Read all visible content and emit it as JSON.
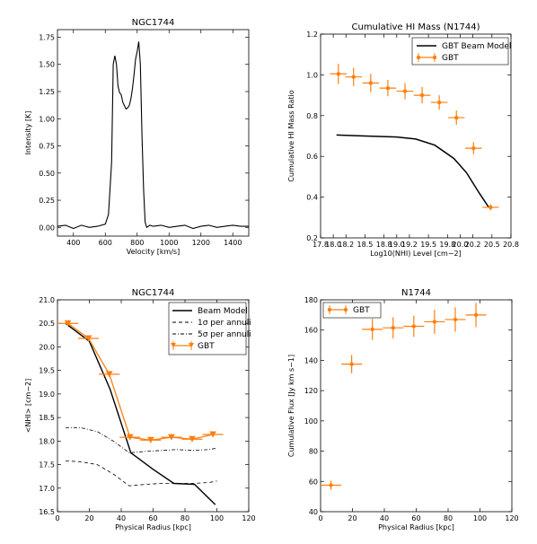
{
  "chart_data": [
    {
      "type": "line",
      "title": "NGC1744",
      "xlabel": "Velocity [km/s]",
      "ylabel": "Intensity [K]",
      "xlim": [
        300,
        1500
      ],
      "ylim": [
        -0.08,
        1.82
      ],
      "xticks": [
        "400",
        "600",
        "800",
        "1000",
        "1200",
        "1400"
      ],
      "yticks": [
        "0.00",
        "0.25",
        "0.50",
        "0.75",
        "1.00",
        "1.25",
        "1.50",
        "1.75"
      ],
      "grid": false,
      "series": [
        {
          "color": "#000000",
          "x": [
            300,
            350,
            400,
            450,
            500,
            550,
            600,
            620,
            640,
            650,
            660,
            670,
            680,
            690,
            700,
            710,
            720,
            730,
            740,
            750,
            760,
            770,
            780,
            790,
            800,
            810,
            820,
            830,
            840,
            850,
            860,
            880,
            900,
            950,
            1000,
            1050,
            1100,
            1150,
            1200,
            1250,
            1300,
            1350,
            1400,
            1450,
            1500
          ],
          "y": [
            0.01,
            0.02,
            -0.01,
            0.02,
            0.0,
            0.01,
            0.03,
            0.12,
            0.6,
            1.5,
            1.58,
            1.5,
            1.3,
            1.24,
            1.22,
            1.15,
            1.12,
            1.09,
            1.1,
            1.12,
            1.18,
            1.27,
            1.4,
            1.55,
            1.62,
            1.71,
            1.5,
            0.85,
            0.35,
            0.05,
            0.0,
            0.02,
            0.01,
            0.02,
            0.0,
            0.01,
            0.02,
            -0.01,
            0.01,
            0.02,
            0.0,
            0.01,
            0.02,
            0.01,
            0.01
          ]
        }
      ]
    },
    {
      "type": "line",
      "title": "Cumulative HI Mass (N1744)",
      "xlabel": "Log10(NHI) Level [cm−2]",
      "ylabel": "Cumulative HI Mass Ratio",
      "xlim": [
        17.8,
        20.8
      ],
      "ylim": [
        0.2,
        1.2
      ],
      "xticks": [
        "17.8",
        "18.0",
        "18.2",
        "18.5",
        "18.8",
        "19.0",
        "19.2",
        "19.5",
        "19.8",
        "20.0",
        "20.2",
        "20.5",
        "20.8"
      ],
      "yticks": [
        "0.2",
        "0.4",
        "0.6",
        "0.8",
        "1.0",
        "1.2"
      ],
      "legend": {
        "position": "top-right",
        "entries": [
          "GBT Beam Model",
          "GBT"
        ]
      },
      "series": [
        {
          "name": "GBT Beam Model",
          "color": "#000000",
          "x": [
            18.05,
            18.5,
            19.0,
            19.3,
            19.6,
            19.9,
            20.1,
            20.3,
            20.45
          ],
          "y": [
            0.705,
            0.7,
            0.695,
            0.685,
            0.655,
            0.59,
            0.52,
            0.42,
            0.35
          ]
        },
        {
          "name": "GBT",
          "color": "#ff7f0e",
          "x": [
            18.08,
            18.32,
            18.59,
            18.86,
            19.13,
            19.4,
            19.67,
            19.94,
            20.21,
            20.48
          ],
          "y": [
            1.005,
            0.99,
            0.96,
            0.935,
            0.92,
            0.9,
            0.865,
            0.79,
            0.64,
            0.35
          ],
          "xerr": 0.13,
          "yerr": [
            0.05,
            0.045,
            0.045,
            0.04,
            0.04,
            0.04,
            0.035,
            0.035,
            0.03,
            0.015
          ]
        }
      ]
    },
    {
      "type": "line",
      "title": "NGC1744",
      "xlabel": "Physical Radius [kpc]",
      "ylabel": "<NHI> [cm−2]",
      "xlim": [
        0,
        120
      ],
      "ylim": [
        16.5,
        21.0
      ],
      "xticks": [
        "0",
        "20",
        "40",
        "60",
        "80",
        "100",
        "120"
      ],
      "yticks": [
        "16.5",
        "17.0",
        "17.5",
        "18.0",
        "18.5",
        "19.0",
        "19.5",
        "20.0",
        "20.5",
        "21.0"
      ],
      "legend": {
        "position": "top-right",
        "entries": [
          "Beam Model",
          "1σ per annuli",
          "5σ per annuli",
          "GBT"
        ]
      },
      "series": [
        {
          "name": "Beam Model",
          "color": "#000000",
          "x": [
            5,
            20,
            33,
            46,
            60,
            73,
            86,
            99
          ],
          "y": [
            20.5,
            20.12,
            19.1,
            17.75,
            17.4,
            17.1,
            17.08,
            16.65
          ]
        },
        {
          "name": "1σ per annuli",
          "color": "#000000",
          "x": [
            5,
            15,
            25,
            35,
            45,
            55,
            65,
            75,
            85,
            95,
            100
          ],
          "y": [
            17.58,
            17.56,
            17.5,
            17.3,
            17.05,
            17.08,
            17.1,
            17.1,
            17.1,
            17.12,
            17.15
          ]
        },
        {
          "name": "5σ per annuli",
          "color": "#000000",
          "x": [
            5,
            15,
            25,
            35,
            45,
            55,
            65,
            75,
            85,
            95,
            100
          ],
          "y": [
            18.28,
            18.28,
            18.2,
            18.0,
            17.75,
            17.78,
            17.8,
            17.82,
            17.8,
            17.82,
            17.85
          ]
        },
        {
          "name": "GBT",
          "color": "#ff7f0e",
          "x": [
            6.5,
            19.5,
            32.5,
            45.5,
            58.5,
            71.5,
            84.5,
            97.5
          ],
          "y": [
            20.5,
            20.18,
            19.42,
            18.08,
            18.02,
            18.08,
            18.04,
            18.14
          ],
          "xerr": 6.5
        }
      ]
    },
    {
      "type": "scatter",
      "title": "N1744",
      "xlabel": "Physical Radius [kpc]",
      "ylabel": "Cumulative Flux [Jy km s−1]",
      "xlim": [
        0,
        120
      ],
      "ylim": [
        40,
        180
      ],
      "xticks": [
        "0",
        "20",
        "40",
        "60",
        "80",
        "100",
        "120"
      ],
      "yticks": [
        "40",
        "60",
        "80",
        "100",
        "120",
        "140",
        "160",
        "180"
      ],
      "legend": {
        "position": "top-left",
        "entries": [
          "GBT"
        ]
      },
      "series": [
        {
          "name": "GBT",
          "color": "#ff7f0e",
          "x": [
            6.5,
            19.5,
            32.5,
            45.5,
            58.5,
            71.5,
            84.5,
            97.5
          ],
          "y": [
            57.5,
            137.5,
            160.5,
            161.5,
            162.5,
            165.5,
            167,
            170
          ],
          "xerr": 6.5,
          "yerr": [
            3,
            6,
            7,
            7,
            7,
            8,
            8,
            8
          ]
        }
      ]
    }
  ],
  "legend_labels": {
    "beam_model": "GBT Beam Model",
    "gbt": "GBT",
    "beam_model_2": "Beam Model",
    "sigma1": "1σ per annuli",
    "sigma5": "5σ per annuli",
    "gbt_2": "GBT",
    "gbt_3": "GBT"
  }
}
